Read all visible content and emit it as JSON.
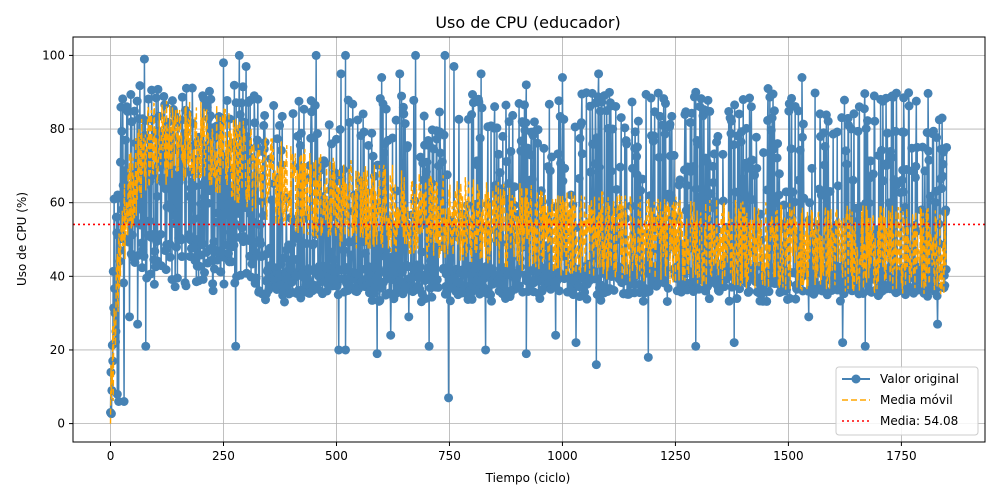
{
  "chart_data": {
    "type": "line",
    "title": "Uso de CPU (educador)",
    "xlabel": "Tiempo (ciclo)",
    "ylabel": "Uso de CPU (%)",
    "xlim": [
      -83,
      1935
    ],
    "ylim": [
      -5,
      105
    ],
    "x_ticks": [
      0,
      250,
      500,
      750,
      1000,
      1250,
      1500,
      1750
    ],
    "y_ticks": [
      0,
      20,
      40,
      60,
      80,
      100
    ],
    "grid": true,
    "legend": "bottom-right",
    "n_points": 1850,
    "mean": 54.08,
    "series": [
      {
        "name": "Valor original",
        "style": "line-marker",
        "color": "#4682b4",
        "profile": {
          "ramp_end": 20,
          "warm_range": [
            45,
            92
          ],
          "steady_range": [
            33,
            90
          ],
          "outliers": [
            {
              "x": 0,
              "y": 3
            },
            {
              "x": 3,
              "y": 9
            },
            {
              "x": 5,
              "y": 17
            },
            {
              "x": 8,
              "y": 61
            },
            {
              "x": 10,
              "y": 30
            },
            {
              "x": 12,
              "y": 25
            },
            {
              "x": 15,
              "y": 8
            },
            {
              "x": 18,
              "y": 6
            },
            {
              "x": 22,
              "y": 71
            },
            {
              "x": 30,
              "y": 6
            },
            {
              "x": 33,
              "y": 77
            },
            {
              "x": 42,
              "y": 29
            },
            {
              "x": 47,
              "y": 82
            },
            {
              "x": 60,
              "y": 27
            },
            {
              "x": 75,
              "y": 99
            },
            {
              "x": 78,
              "y": 21
            },
            {
              "x": 250,
              "y": 98
            },
            {
              "x": 277,
              "y": 21
            },
            {
              "x": 285,
              "y": 100
            },
            {
              "x": 300,
              "y": 97
            },
            {
              "x": 455,
              "y": 100
            },
            {
              "x": 505,
              "y": 20
            },
            {
              "x": 510,
              "y": 95
            },
            {
              "x": 520,
              "y": 100
            },
            {
              "x": 520,
              "y": 20
            },
            {
              "x": 590,
              "y": 19
            },
            {
              "x": 600,
              "y": 94
            },
            {
              "x": 620,
              "y": 24
            },
            {
              "x": 640,
              "y": 95
            },
            {
              "x": 660,
              "y": 29
            },
            {
              "x": 675,
              "y": 100
            },
            {
              "x": 705,
              "y": 21
            },
            {
              "x": 740,
              "y": 100
            },
            {
              "x": 748,
              "y": 7
            },
            {
              "x": 760,
              "y": 97
            },
            {
              "x": 820,
              "y": 95
            },
            {
              "x": 830,
              "y": 20
            },
            {
              "x": 920,
              "y": 92
            },
            {
              "x": 920,
              "y": 19
            },
            {
              "x": 985,
              "y": 24
            },
            {
              "x": 1000,
              "y": 94
            },
            {
              "x": 1030,
              "y": 22
            },
            {
              "x": 1075,
              "y": 16
            },
            {
              "x": 1080,
              "y": 95
            },
            {
              "x": 1190,
              "y": 18
            },
            {
              "x": 1295,
              "y": 90
            },
            {
              "x": 1295,
              "y": 21
            },
            {
              "x": 1380,
              "y": 22
            },
            {
              "x": 1455,
              "y": 91
            },
            {
              "x": 1530,
              "y": 94
            },
            {
              "x": 1545,
              "y": 29
            },
            {
              "x": 1620,
              "y": 22
            },
            {
              "x": 1670,
              "y": 21
            },
            {
              "x": 1690,
              "y": 89
            },
            {
              "x": 1730,
              "y": 89
            },
            {
              "x": 1830,
              "y": 27
            },
            {
              "x": 1840,
              "y": 83
            },
            {
              "x": 1850,
              "y": 75
            }
          ]
        }
      },
      {
        "name": "Media móvil",
        "style": "dashed",
        "color": "#ffa500",
        "profile": {
          "segments": [
            {
              "x": 0,
              "y": 5
            },
            {
              "x": 20,
              "y": 45
            },
            {
              "x": 40,
              "y": 62
            },
            {
              "x": 80,
              "y": 75
            },
            {
              "x": 150,
              "y": 78
            },
            {
              "x": 250,
              "y": 74
            },
            {
              "x": 300,
              "y": 70
            },
            {
              "x": 400,
              "y": 64
            },
            {
              "x": 500,
              "y": 60
            },
            {
              "x": 650,
              "y": 58
            },
            {
              "x": 800,
              "y": 55
            },
            {
              "x": 1000,
              "y": 52
            },
            {
              "x": 1200,
              "y": 50
            },
            {
              "x": 1500,
              "y": 48
            },
            {
              "x": 1850,
              "y": 47
            }
          ],
          "spread": 12
        }
      },
      {
        "name": "Media: 54.08",
        "style": "dotted",
        "color": "#ff0000",
        "value": 54.08
      }
    ]
  }
}
